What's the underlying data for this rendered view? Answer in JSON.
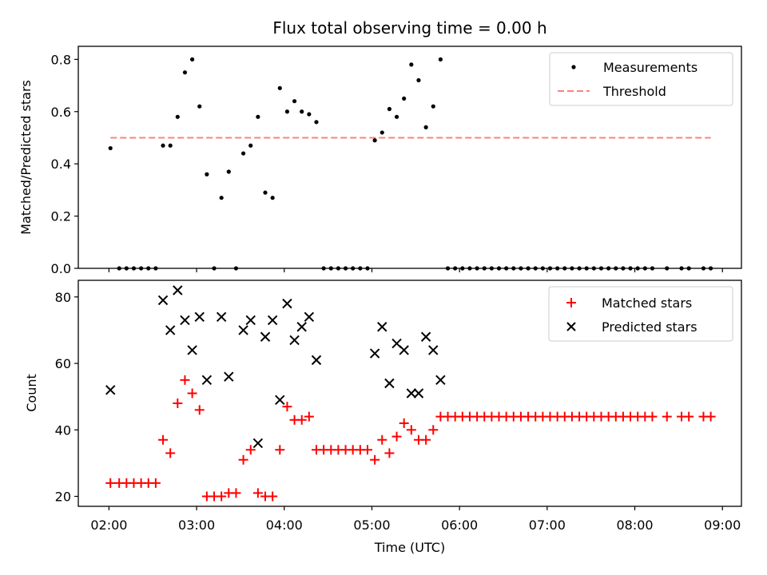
{
  "chart_data": {
    "title": "Flux total observing time = 0.00 h",
    "xlabel": "Time (UTC)",
    "x_ticks": [
      "02:00",
      "03:00",
      "04:00",
      "05:00",
      "06:00",
      "07:00",
      "08:00",
      "09:00"
    ],
    "xlim": [
      "01:39",
      "09:13"
    ],
    "panels": [
      {
        "type": "scatter",
        "ylabel": "Matched/Predicted stars",
        "ylim": [
          0,
          0.85
        ],
        "y_ticks": [
          "0.0",
          "0.2",
          "0.4",
          "0.6",
          "0.8"
        ],
        "legend_position": "top-right",
        "series": [
          {
            "name": "Measurements",
            "marker": "dot",
            "color": "#000000",
            "points": [
              [
                "02:01",
                0.46
              ],
              [
                "02:07",
                0.0
              ],
              [
                "02:12",
                0.0
              ],
              [
                "02:17",
                0.0
              ],
              [
                "02:22",
                0.0
              ],
              [
                "02:27",
                0.0
              ],
              [
                "02:32",
                0.0
              ],
              [
                "02:37",
                0.47
              ],
              [
                "02:42",
                0.47
              ],
              [
                "02:47",
                0.58
              ],
              [
                "02:52",
                0.75
              ],
              [
                "02:57",
                0.8
              ],
              [
                "03:02",
                0.62
              ],
              [
                "03:07",
                0.36
              ],
              [
                "03:12",
                0.0
              ],
              [
                "03:17",
                0.27
              ],
              [
                "03:22",
                0.37
              ],
              [
                "03:27",
                0.0
              ],
              [
                "03:32",
                0.44
              ],
              [
                "03:37",
                0.47
              ],
              [
                "03:42",
                0.58
              ],
              [
                "03:47",
                0.29
              ],
              [
                "03:52",
                0.27
              ],
              [
                "03:57",
                0.69
              ],
              [
                "04:02",
                0.6
              ],
              [
                "04:07",
                0.64
              ],
              [
                "04:12",
                0.6
              ],
              [
                "04:17",
                0.59
              ],
              [
                "04:22",
                0.56
              ],
              [
                "04:27",
                0.0
              ],
              [
                "04:32",
                0.0
              ],
              [
                "04:37",
                0.0
              ],
              [
                "04:42",
                0.0
              ],
              [
                "04:47",
                0.0
              ],
              [
                "04:52",
                0.0
              ],
              [
                "04:57",
                0.0
              ],
              [
                "05:02",
                0.49
              ],
              [
                "05:07",
                0.52
              ],
              [
                "05:12",
                0.61
              ],
              [
                "05:17",
                0.58
              ],
              [
                "05:22",
                0.65
              ],
              [
                "05:27",
                0.78
              ],
              [
                "05:32",
                0.72
              ],
              [
                "05:37",
                0.54
              ],
              [
                "05:42",
                0.62
              ],
              [
                "05:47",
                0.8
              ],
              [
                "05:52",
                0.0
              ],
              [
                "05:57",
                0.0
              ],
              [
                "06:02",
                0.0
              ],
              [
                "06:07",
                0.0
              ],
              [
                "06:12",
                0.0
              ],
              [
                "06:17",
                0.0
              ],
              [
                "06:22",
                0.0
              ],
              [
                "06:27",
                0.0
              ],
              [
                "06:32",
                0.0
              ],
              [
                "06:37",
                0.0
              ],
              [
                "06:42",
                0.0
              ],
              [
                "06:47",
                0.0
              ],
              [
                "06:52",
                0.0
              ],
              [
                "06:57",
                0.0
              ],
              [
                "07:02",
                0.0
              ],
              [
                "07:07",
                0.0
              ],
              [
                "07:12",
                0.0
              ],
              [
                "07:17",
                0.0
              ],
              [
                "07:22",
                0.0
              ],
              [
                "07:27",
                0.0
              ],
              [
                "07:32",
                0.0
              ],
              [
                "07:37",
                0.0
              ],
              [
                "07:42",
                0.0
              ],
              [
                "07:47",
                0.0
              ],
              [
                "07:52",
                0.0
              ],
              [
                "07:57",
                0.0
              ],
              [
                "08:02",
                0.0
              ],
              [
                "08:07",
                0.0
              ],
              [
                "08:12",
                0.0
              ],
              [
                "08:22",
                0.0
              ],
              [
                "08:32",
                0.0
              ],
              [
                "08:37",
                0.0
              ],
              [
                "08:47",
                0.0
              ],
              [
                "08:52",
                0.0
              ]
            ]
          },
          {
            "name": "Threshold",
            "type": "line",
            "style": "dashed",
            "color": "#ff8080",
            "points": [
              [
                "02:01",
                0.5
              ],
              [
                "08:52",
                0.5
              ]
            ]
          }
        ]
      },
      {
        "type": "scatter",
        "ylabel": "Count",
        "ylim": [
          17,
          85
        ],
        "y_ticks": [
          "20",
          "40",
          "60",
          "80"
        ],
        "legend_position": "top-right",
        "series": [
          {
            "name": "Matched stars",
            "marker": "plus",
            "color": "#ff0000",
            "points": [
              [
                "02:01",
                24
              ],
              [
                "02:07",
                24
              ],
              [
                "02:12",
                24
              ],
              [
                "02:17",
                24
              ],
              [
                "02:22",
                24
              ],
              [
                "02:27",
                24
              ],
              [
                "02:32",
                24
              ],
              [
                "02:37",
                37
              ],
              [
                "02:42",
                33
              ],
              [
                "02:47",
                48
              ],
              [
                "02:52",
                55
              ],
              [
                "02:57",
                51
              ],
              [
                "03:02",
                46
              ],
              [
                "03:07",
                20
              ],
              [
                "03:12",
                20
              ],
              [
                "03:17",
                20
              ],
              [
                "03:22",
                21
              ],
              [
                "03:27",
                21
              ],
              [
                "03:32",
                31
              ],
              [
                "03:37",
                34
              ],
              [
                "03:42",
                21
              ],
              [
                "03:47",
                20
              ],
              [
                "03:52",
                20
              ],
              [
                "03:57",
                34
              ],
              [
                "04:02",
                47
              ],
              [
                "04:07",
                43
              ],
              [
                "04:12",
                43
              ],
              [
                "04:17",
                44
              ],
              [
                "04:22",
                34
              ],
              [
                "04:27",
                34
              ],
              [
                "04:32",
                34
              ],
              [
                "04:37",
                34
              ],
              [
                "04:42",
                34
              ],
              [
                "04:47",
                34
              ],
              [
                "04:52",
                34
              ],
              [
                "04:57",
                34
              ],
              [
                "05:02",
                31
              ],
              [
                "05:07",
                37
              ],
              [
                "05:12",
                33
              ],
              [
                "05:17",
                38
              ],
              [
                "05:22",
                42
              ],
              [
                "05:27",
                40
              ],
              [
                "05:32",
                37
              ],
              [
                "05:37",
                37
              ],
              [
                "05:42",
                40
              ],
              [
                "05:47",
                44
              ],
              [
                "05:52",
                44
              ],
              [
                "05:57",
                44
              ],
              [
                "06:02",
                44
              ],
              [
                "06:07",
                44
              ],
              [
                "06:12",
                44
              ],
              [
                "06:17",
                44
              ],
              [
                "06:22",
                44
              ],
              [
                "06:27",
                44
              ],
              [
                "06:32",
                44
              ],
              [
                "06:37",
                44
              ],
              [
                "06:42",
                44
              ],
              [
                "06:47",
                44
              ],
              [
                "06:52",
                44
              ],
              [
                "06:57",
                44
              ],
              [
                "07:02",
                44
              ],
              [
                "07:07",
                44
              ],
              [
                "07:12",
                44
              ],
              [
                "07:17",
                44
              ],
              [
                "07:22",
                44
              ],
              [
                "07:27",
                44
              ],
              [
                "07:32",
                44
              ],
              [
                "07:37",
                44
              ],
              [
                "07:42",
                44
              ],
              [
                "07:47",
                44
              ],
              [
                "07:52",
                44
              ],
              [
                "07:57",
                44
              ],
              [
                "08:02",
                44
              ],
              [
                "08:07",
                44
              ],
              [
                "08:12",
                44
              ],
              [
                "08:22",
                44
              ],
              [
                "08:32",
                44
              ],
              [
                "08:37",
                44
              ],
              [
                "08:47",
                44
              ],
              [
                "08:52",
                44
              ]
            ]
          },
          {
            "name": "Predicted stars",
            "marker": "x",
            "color": "#000000",
            "points": [
              [
                "02:01",
                52
              ],
              [
                "02:37",
                79
              ],
              [
                "02:42",
                70
              ],
              [
                "02:47",
                82
              ],
              [
                "02:52",
                73
              ],
              [
                "02:57",
                64
              ],
              [
                "03:02",
                74
              ],
              [
                "03:07",
                55
              ],
              [
                "03:17",
                74
              ],
              [
                "03:22",
                56
              ],
              [
                "03:32",
                70
              ],
              [
                "03:37",
                73
              ],
              [
                "03:42",
                36
              ],
              [
                "03:47",
                68
              ],
              [
                "03:52",
                73
              ],
              [
                "03:57",
                49
              ],
              [
                "04:02",
                78
              ],
              [
                "04:07",
                67
              ],
              [
                "04:12",
                71
              ],
              [
                "04:17",
                74
              ],
              [
                "04:22",
                61
              ],
              [
                "05:02",
                63
              ],
              [
                "05:07",
                71
              ],
              [
                "05:12",
                54
              ],
              [
                "05:17",
                66
              ],
              [
                "05:22",
                64
              ],
              [
                "05:27",
                51
              ],
              [
                "05:32",
                51
              ],
              [
                "05:37",
                68
              ],
              [
                "05:42",
                64
              ],
              [
                "05:47",
                55
              ]
            ]
          }
        ]
      }
    ]
  }
}
